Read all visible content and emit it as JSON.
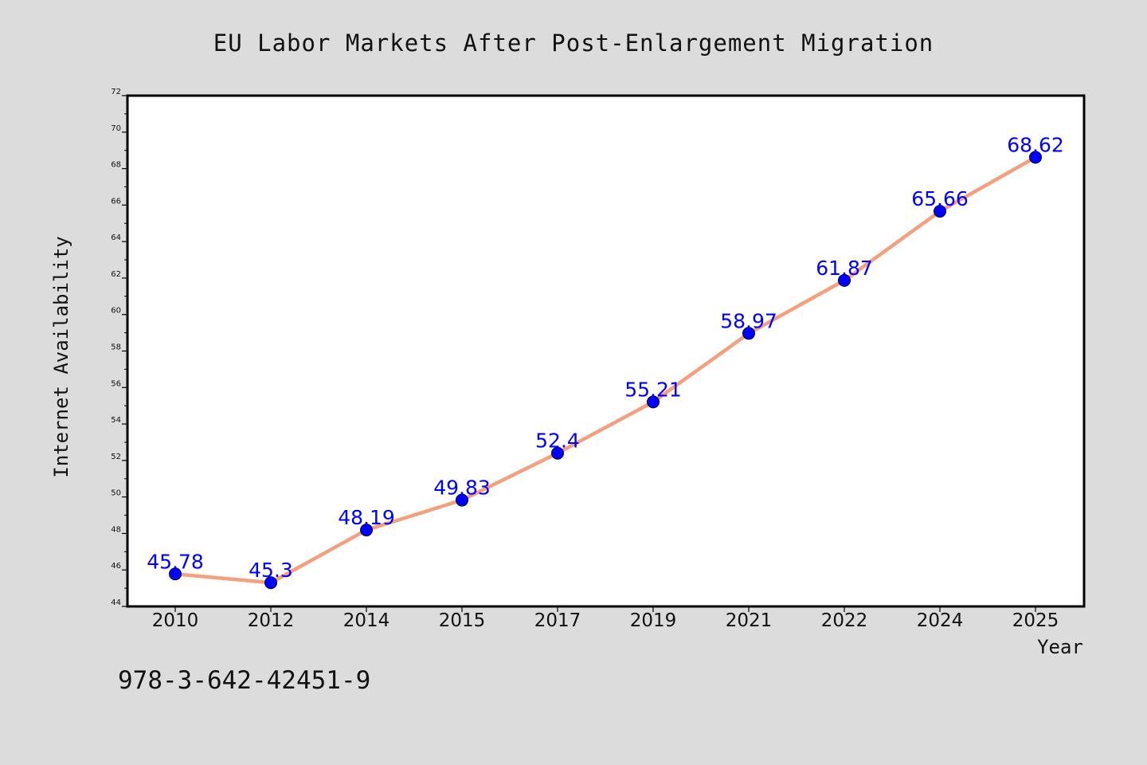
{
  "chart_data": {
    "type": "line",
    "title": "EU Labor Markets After Post-Enlargement Migration",
    "xlabel": "Year",
    "ylabel": "Internet Availability",
    "categories": [
      "2010",
      "2012",
      "2014",
      "2015",
      "2017",
      "2019",
      "2021",
      "2022",
      "2024",
      "2025"
    ],
    "series": [
      {
        "values": [
          45.78,
          45.3,
          48.19,
          49.83,
          52.4,
          55.21,
          58.97,
          61.87,
          65.66,
          68.62
        ],
        "data_labels": [
          "45.78",
          "45.3",
          "48.19",
          "49.83",
          "52.4",
          "55.21",
          "58.97",
          "61.87",
          "65.66",
          "68.62"
        ]
      }
    ],
    "ylim": [
      44,
      72
    ],
    "yticks": [
      "44",
      "46",
      "48",
      "50",
      "52",
      "54",
      "56",
      "58",
      "60",
      "62",
      "64",
      "66",
      "68",
      "70",
      "72"
    ],
    "grid": false,
    "legend": "none",
    "colors": {
      "line": "#f4a07e",
      "marker": "#0000ff",
      "label": "#0000ff",
      "background": "#dcdcdc",
      "plot_background": "#ffffff"
    }
  },
  "footer": {
    "text": "978-3-642-42451-9"
  }
}
